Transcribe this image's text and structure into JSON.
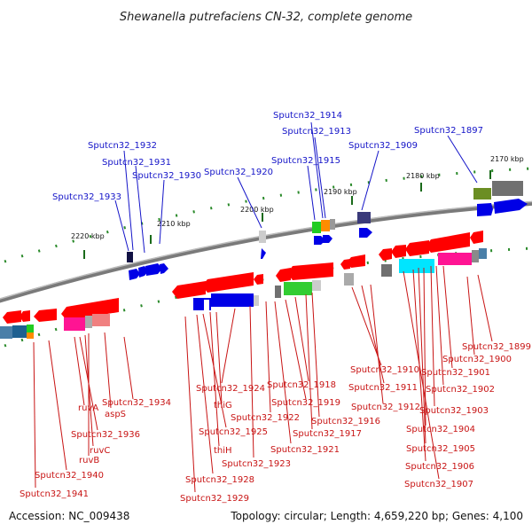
{
  "title": "Shewanella putrefaciens CN-32, complete genome",
  "accession": "Accession: NC_009438",
  "topology": "Topology: circular; Length: 4,659,220 bp; Genes: 4,100",
  "colors": {
    "forward_label": "#1414c8",
    "reverse_label": "#c81414",
    "backbone": "#888888"
  },
  "ticks": [
    "2170 kbp",
    "2180 kbp",
    "2190 kbp",
    "2200 kbp",
    "2210 kbp",
    "2220 kbp"
  ],
  "top_labels": [
    "Sputcn32_1914",
    "Sputcn32_1913",
    "Sputcn32_1932",
    "Sputcn32_1915",
    "Sputcn32_1909",
    "Sputcn32_1897",
    "Sputcn32_1931",
    "Sputcn32_1930",
    "Sputcn32_1920",
    "Sputcn32_1933"
  ],
  "bottom_labels": [
    "Sputcn32_1899",
    "Sputcn32_1900",
    "Sputcn32_1910",
    "Sputcn32_1901",
    "Sputcn32_1911",
    "Sputcn32_1902",
    "Sputcn32_1918",
    "Sputcn32_1924",
    "Sputcn32_1934",
    "Sputcn32_1912",
    "Sputcn32_1903",
    "Sputcn32_1919",
    "thiG",
    "ruvA",
    "aspS",
    "Sputcn32_1922",
    "Sputcn32_1916",
    "Sputcn32_1904",
    "Sputcn32_1925",
    "Sputcn32_1917",
    "Sputcn32_1936",
    "Sputcn32_1921",
    "Sputcn32_1905",
    "ruvC",
    "thiH",
    "ruvB",
    "Sputcn32_1923",
    "Sputcn32_1906",
    "Sputcn32_1940",
    "Sputcn32_1928",
    "Sputcn32_1907",
    "Sputcn32_1929",
    "Sputcn32_1941"
  ]
}
